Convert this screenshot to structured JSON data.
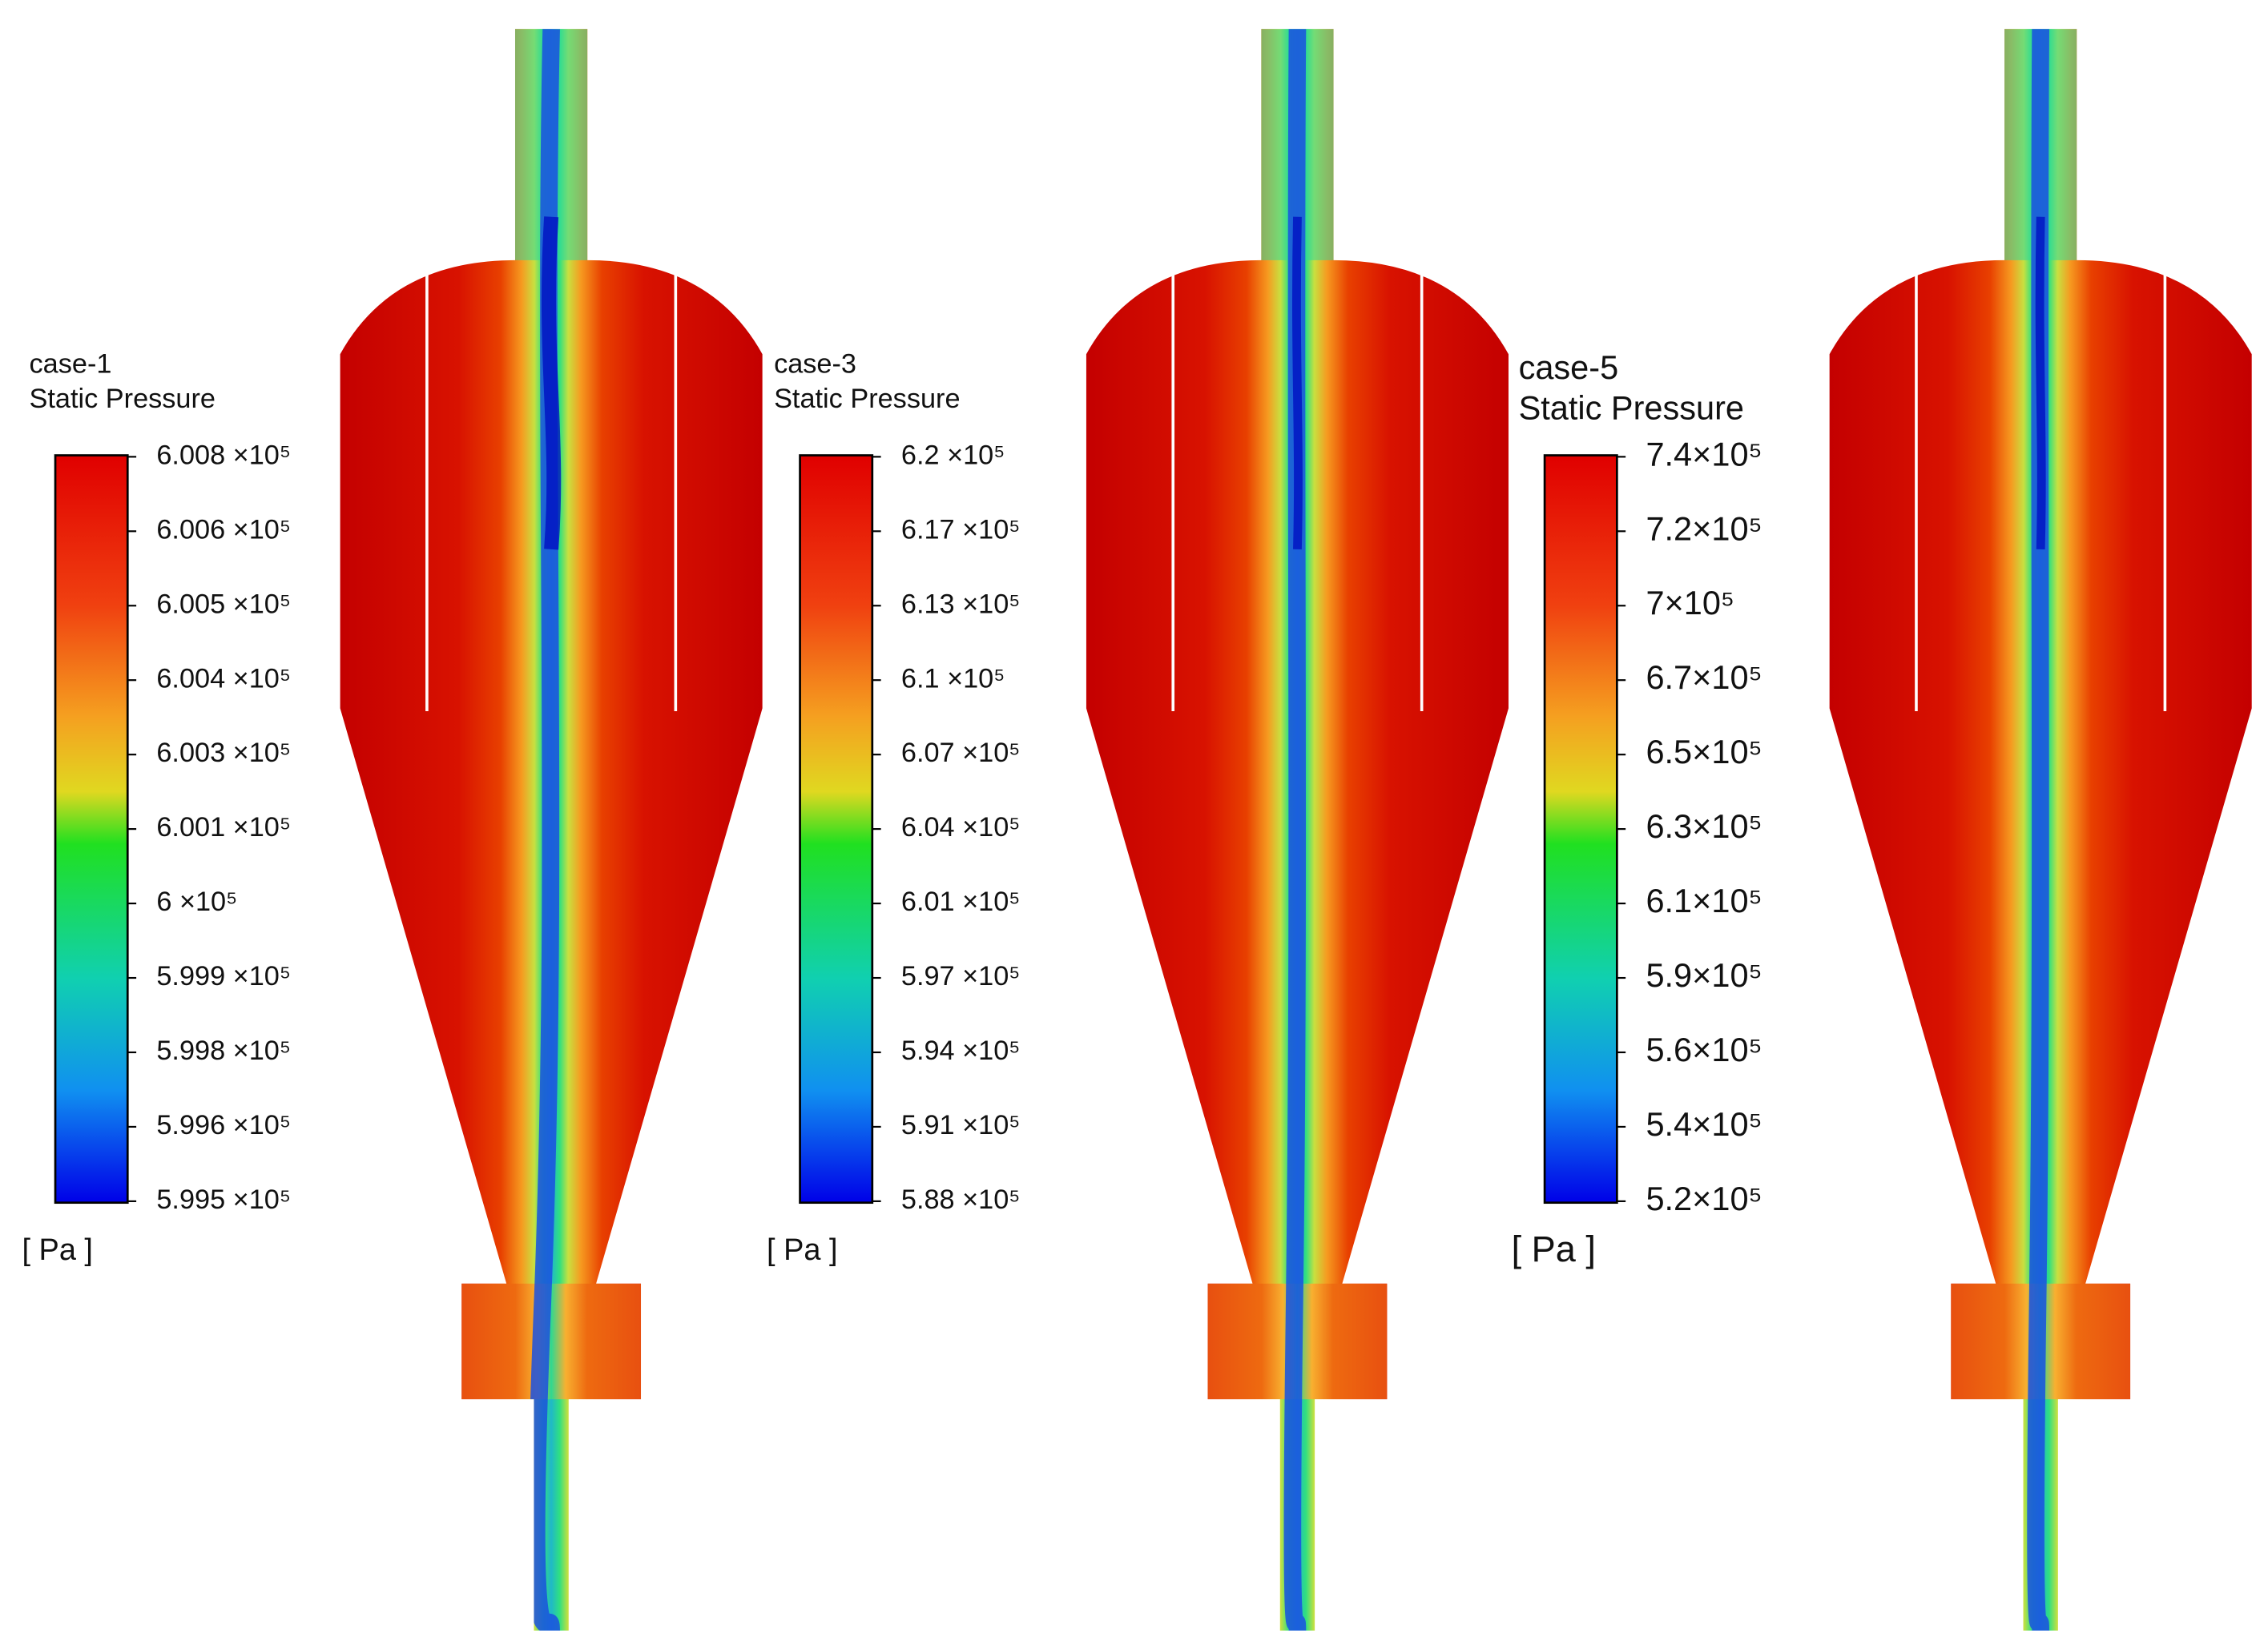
{
  "panels": [
    {
      "case": "case-1",
      "title": "Static Pressure",
      "unit": "[ Pa ]",
      "ticks": [
        "6.008 ×10⁵",
        "6.006 ×10⁵",
        "6.005 ×10⁵",
        "6.004 ×10⁵",
        "6.003 ×10⁵",
        "6.001 ×10⁵",
        "6 ×10⁵",
        "5.999 ×10⁵",
        "5.998 ×10⁵",
        "5.996 ×10⁵",
        "5.995 ×10⁵"
      ]
    },
    {
      "case": "case-3",
      "title": "Static Pressure",
      "unit": "[ Pa ]",
      "ticks": [
        "6.2 ×10⁵",
        "6.17 ×10⁵",
        "6.13 ×10⁵",
        "6.1 ×10⁵",
        "6.07 ×10⁵",
        "6.04 ×10⁵",
        "6.01 ×10⁵",
        "5.97 ×10⁵",
        "5.94 ×10⁵",
        "5.91 ×10⁵",
        "5.88 ×10⁵"
      ]
    },
    {
      "case": "case-5",
      "title": "Static Pressure",
      "unit": "[ Pa ]",
      "ticks": [
        "7.4×10⁵",
        "7.2×10⁵",
        "7×10⁵",
        "6.7×10⁵",
        "6.5×10⁵",
        "6.3×10⁵",
        "6.1×10⁵",
        "5.9×10⁵",
        "5.6×10⁵",
        "5.4×10⁵",
        "5.2×10⁵"
      ]
    }
  ]
}
